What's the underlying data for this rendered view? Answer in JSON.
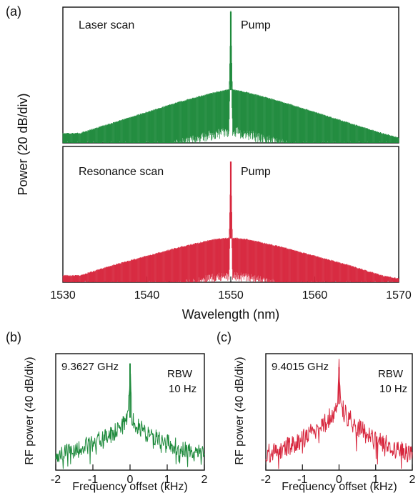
{
  "chart_data": [
    {
      "type": "line",
      "panel_label": "(a)",
      "ylabel": "Power (20 dB/div)",
      "annotations": [
        "Laser scan",
        "Pump"
      ],
      "color": "#1e8a3c",
      "xlim": [
        1530,
        1570
      ],
      "ylim": [
        0,
        9
      ],
      "x": [
        1532,
        1536,
        1540,
        1544,
        1548,
        1549.8,
        1550,
        1550.2,
        1552,
        1556,
        1560,
        1564,
        1568,
        1570
      ],
      "y": [
        0.6,
        1.3,
        2.0,
        2.7,
        3.3,
        3.5,
        8.7,
        3.5,
        3.3,
        2.7,
        2.0,
        1.3,
        0.6,
        0.3
      ],
      "series": [
        {
          "name": "Laser scan",
          "values": [
            0.6,
            1.3,
            2.0,
            2.7,
            3.3,
            3.5,
            8.7,
            3.5,
            3.3,
            2.7,
            2.0,
            1.3,
            0.6,
            0.3
          ]
        }
      ]
    },
    {
      "type": "line",
      "ylabel": "Power (20 dB/div)",
      "xlabel": "Wavelength (nm)",
      "annotations": [
        "Resonance scan",
        "Pump"
      ],
      "color": "#d7263d",
      "xlim": [
        1530,
        1570
      ],
      "ylim": [
        0,
        9
      ],
      "x": [
        1532,
        1536,
        1540,
        1544,
        1548,
        1549.8,
        1550,
        1550.2,
        1552,
        1556,
        1560,
        1564,
        1568,
        1570
      ],
      "y": [
        0.4,
        1.1,
        1.7,
        2.3,
        2.8,
        2.9,
        8.0,
        2.9,
        2.8,
        2.3,
        1.7,
        1.1,
        0.4,
        0.2
      ],
      "x_ticks": [
        "1530",
        "1540",
        "1550",
        "1560",
        "1570"
      ],
      "series": [
        {
          "name": "Resonance scan",
          "values": [
            0.4,
            1.1,
            1.7,
            2.3,
            2.8,
            2.9,
            8.0,
            2.9,
            2.8,
            2.3,
            1.7,
            1.1,
            0.4,
            0.2
          ]
        }
      ]
    },
    {
      "type": "line",
      "panel_label": "(b)",
      "ylabel": "RF power (40 dB/div)",
      "xlabel": "Frequency offset (kHz)",
      "annotations": [
        "9.3627 GHz",
        "RBW",
        "10 Hz"
      ],
      "color": "#1e8a3c",
      "xlim": [
        -2,
        2
      ],
      "ylim": [
        0,
        6
      ],
      "x_ticks": [
        "-2",
        "-1",
        "0",
        "1",
        "2"
      ],
      "x": [
        -2,
        -1.5,
        -1,
        -0.5,
        -0.2,
        -0.05,
        0,
        0.05,
        0.2,
        0.5,
        1,
        1.5,
        2
      ],
      "y": [
        0.8,
        1.0,
        1.4,
        1.8,
        2.3,
        2.7,
        5.5,
        2.7,
        2.3,
        1.8,
        1.4,
        1.0,
        0.8
      ],
      "series": [
        {
          "name": "9.3627 GHz",
          "values": [
            0.8,
            1.0,
            1.4,
            1.8,
            2.3,
            2.7,
            5.5,
            2.7,
            2.3,
            1.8,
            1.4,
            1.0,
            0.8
          ]
        }
      ]
    },
    {
      "type": "line",
      "panel_label": "(c)",
      "ylabel": "RF power (40 dB/div)",
      "xlabel": "Frequency offset (kHz)",
      "annotations": [
        "9.4015 GHz",
        "RBW",
        "10 Hz"
      ],
      "color": "#d7263d",
      "xlim": [
        -2,
        2
      ],
      "ylim": [
        0,
        6
      ],
      "x_ticks": [
        "-2",
        "-1",
        "0",
        "1",
        "2"
      ],
      "x": [
        -2,
        -1.5,
        -1,
        -0.5,
        -0.2,
        -0.05,
        0,
        0.05,
        0.2,
        0.5,
        1,
        1.5,
        2
      ],
      "y": [
        0.8,
        1.1,
        1.6,
        2.2,
        2.8,
        3.4,
        5.3,
        3.4,
        2.8,
        2.2,
        1.6,
        1.1,
        0.8
      ],
      "series": [
        {
          "name": "9.4015 GHz",
          "values": [
            0.8,
            1.1,
            1.6,
            2.2,
            2.8,
            3.4,
            5.3,
            3.4,
            2.8,
            2.2,
            1.6,
            1.1,
            0.8
          ]
        }
      ]
    }
  ]
}
